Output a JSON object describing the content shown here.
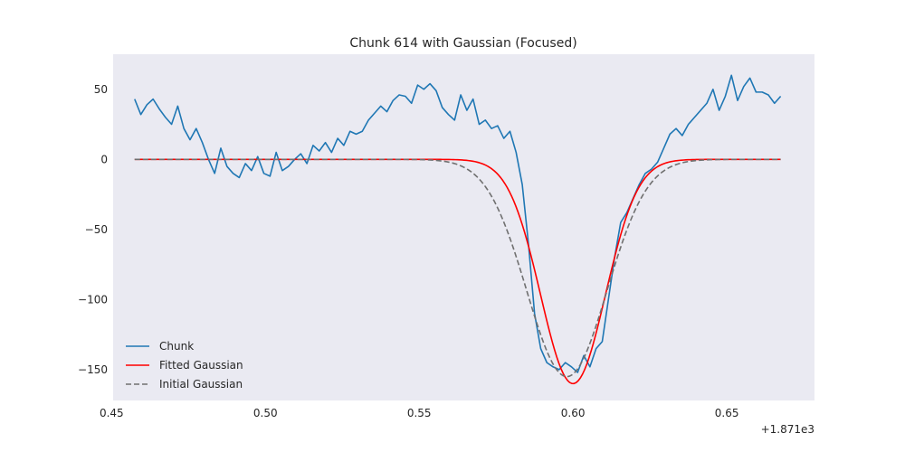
{
  "chart_data": {
    "type": "line",
    "title": "Chunk 614 with Gaussian (Focused)",
    "xlabel": "",
    "ylabel": "",
    "x_offset_label": "+1.871e3",
    "xlim": [
      0.4505,
      0.6785
    ],
    "ylim": [
      -172,
      75
    ],
    "x_ticks": [
      0.45,
      0.5,
      0.55,
      0.6,
      0.65
    ],
    "x_tick_labels": [
      "0.45",
      "0.50",
      "0.55",
      "0.60",
      "0.65"
    ],
    "y_ticks": [
      50,
      0,
      -50,
      -100,
      -150
    ],
    "y_tick_labels": [
      "50",
      "0",
      "−50",
      "−100",
      "−150"
    ],
    "grid": false,
    "background": "#eaeaf2",
    "legend": "lower-left",
    "series": [
      {
        "name": "Chunk",
        "style": "solid",
        "color": "#1f77b4",
        "x": [
          0.4575,
          0.4595,
          0.4615,
          0.4635,
          0.4655,
          0.4675,
          0.4695,
          0.4715,
          0.4735,
          0.4755,
          0.4775,
          0.4795,
          0.4815,
          0.4835,
          0.4855,
          0.4875,
          0.4895,
          0.4915,
          0.4935,
          0.4955,
          0.4975,
          0.4995,
          0.5015,
          0.5035,
          0.5055,
          0.5075,
          0.5095,
          0.5115,
          0.5135,
          0.5155,
          0.5175,
          0.5195,
          0.5215,
          0.5235,
          0.5255,
          0.5275,
          0.5295,
          0.5315,
          0.5335,
          0.5355,
          0.5375,
          0.5395,
          0.5415,
          0.5435,
          0.5455,
          0.5475,
          0.5495,
          0.5515,
          0.5535,
          0.5555,
          0.5575,
          0.5595,
          0.5615,
          0.5635,
          0.5655,
          0.5675,
          0.5695,
          0.5715,
          0.5735,
          0.5755,
          0.5775,
          0.5795,
          0.5815,
          0.5835,
          0.5855,
          0.5875,
          0.5895,
          0.5915,
          0.5935,
          0.5955,
          0.5975,
          0.5995,
          0.6015,
          0.6035,
          0.6055,
          0.6075,
          0.6095,
          0.6115,
          0.6135,
          0.6155,
          0.6175,
          0.6195,
          0.6215,
          0.6235,
          0.6255,
          0.6275,
          0.6295,
          0.6315,
          0.6335,
          0.6355,
          0.6375,
          0.6395,
          0.6415,
          0.6435,
          0.6455,
          0.6475,
          0.6495,
          0.6515,
          0.6535,
          0.6555,
          0.6575,
          0.6595,
          0.6615,
          0.6635,
          0.6655,
          0.6675
        ],
        "y": [
          43,
          32,
          39,
          43,
          36,
          30,
          25,
          38,
          22,
          14,
          22,
          12,
          0,
          -10,
          8,
          -5,
          -10,
          -13,
          -3,
          -8,
          2,
          -10,
          -12,
          5,
          -8,
          -5,
          0,
          4,
          -3,
          10,
          6,
          12,
          5,
          15,
          10,
          20,
          18,
          20,
          28,
          33,
          38,
          34,
          42,
          46,
          45,
          40,
          53,
          50,
          54,
          49,
          37,
          32,
          28,
          46,
          35,
          43,
          25,
          28,
          22,
          24,
          15,
          20,
          5,
          -18,
          -60,
          -110,
          -135,
          -145,
          -148,
          -150,
          -145,
          -148,
          -152,
          -140,
          -148,
          -135,
          -130,
          -100,
          -70,
          -45,
          -38,
          -28,
          -18,
          -10,
          -7,
          -2,
          8,
          18,
          22,
          17,
          25,
          30,
          35,
          40,
          50,
          35,
          45,
          60,
          42,
          52,
          58,
          48,
          48,
          46,
          40,
          45
        ]
      },
      {
        "name": "Fitted Gaussian",
        "style": "solid",
        "color": "#ff0000",
        "gaussian": {
          "amplitude": -160,
          "mean": 0.6,
          "sigma": 0.0105
        },
        "x_range": [
          0.4575,
          0.6675
        ]
      },
      {
        "name": "Initial Gaussian",
        "style": "dashed",
        "color": "#707070",
        "gaussian": {
          "amplitude": -155,
          "mean": 0.598,
          "sigma": 0.013
        },
        "x_range": [
          0.4575,
          0.6675
        ]
      }
    ]
  }
}
